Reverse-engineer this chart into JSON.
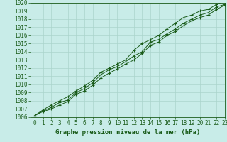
{
  "title": "Graphe pression niveau de la mer (hPa)",
  "bg_color": "#c8ece8",
  "grid_color": "#aad4cc",
  "line_color": "#1a5c1a",
  "x_values": [
    0,
    1,
    2,
    3,
    4,
    5,
    6,
    7,
    8,
    9,
    10,
    11,
    12,
    13,
    14,
    15,
    16,
    17,
    18,
    19,
    20,
    21,
    22,
    23
  ],
  "line1": [
    1006.2,
    1006.8,
    1007.2,
    1007.8,
    1008.1,
    1009.0,
    1009.5,
    1010.2,
    1011.2,
    1011.8,
    1012.2,
    1012.8,
    1013.5,
    1014.0,
    1015.2,
    1015.5,
    1016.2,
    1016.8,
    1017.5,
    1018.0,
    1018.5,
    1018.8,
    1019.5,
    1019.8
  ],
  "line2": [
    1006.2,
    1006.9,
    1007.5,
    1008.0,
    1008.5,
    1009.2,
    1009.8,
    1010.5,
    1011.5,
    1012.0,
    1012.5,
    1013.0,
    1014.2,
    1015.0,
    1015.5,
    1016.0,
    1016.8,
    1017.5,
    1018.2,
    1018.5,
    1019.0,
    1019.2,
    1019.8,
    1020.2
  ],
  "line3": [
    1006.2,
    1006.7,
    1007.0,
    1007.5,
    1007.9,
    1008.8,
    1009.2,
    1009.9,
    1010.8,
    1011.4,
    1011.9,
    1012.5,
    1013.0,
    1013.8,
    1014.8,
    1015.2,
    1016.0,
    1016.5,
    1017.2,
    1017.8,
    1018.2,
    1018.5,
    1019.2,
    1019.7
  ],
  "ylim": [
    1006,
    1020
  ],
  "yticks": [
    1006,
    1007,
    1008,
    1009,
    1010,
    1011,
    1012,
    1013,
    1014,
    1015,
    1016,
    1017,
    1018,
    1019,
    1020
  ],
  "xlim": [
    -0.5,
    23
  ],
  "tick_fontsize": 5.5,
  "label_fontsize": 6.5
}
